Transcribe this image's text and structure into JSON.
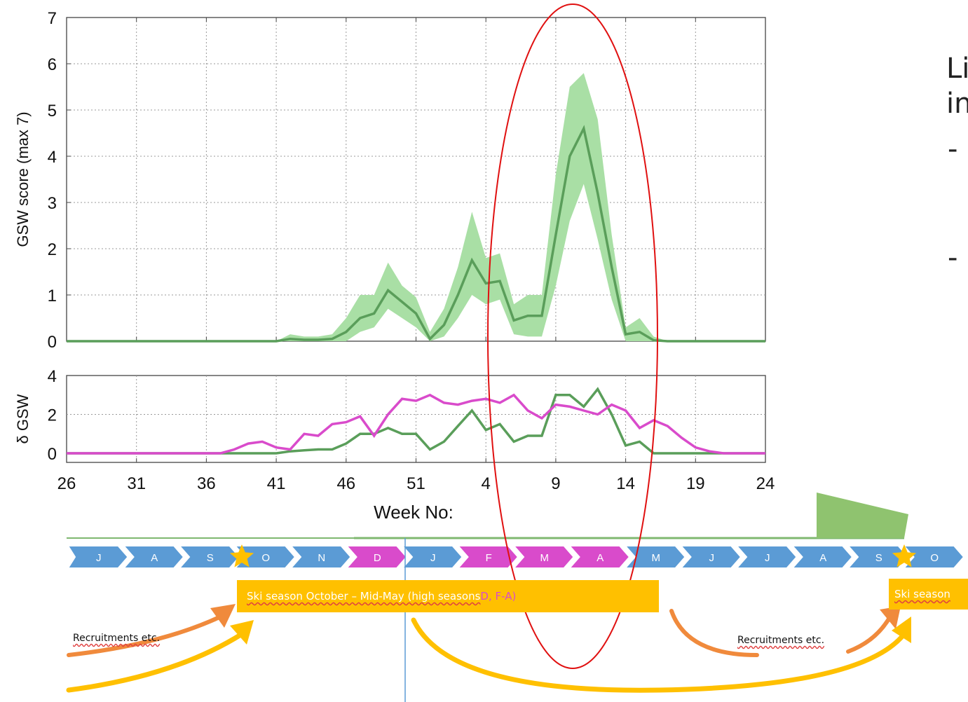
{
  "side_text": {
    "line1": "Li",
    "line2": "in",
    "dash1": "-",
    "dash2": "-"
  },
  "timeline": {
    "months": [
      {
        "label": "J",
        "color": "#5b9bd5"
      },
      {
        "label": "A",
        "color": "#5b9bd5"
      },
      {
        "label": "S",
        "color": "#5b9bd5"
      },
      {
        "label": "O",
        "color": "#5b9bd5"
      },
      {
        "label": "N",
        "color": "#5b9bd5"
      },
      {
        "label": "D",
        "color": "#d94bcb"
      },
      {
        "label": "J",
        "color": "#5b9bd5"
      },
      {
        "label": "F",
        "color": "#d94bcb"
      },
      {
        "label": "M",
        "color": "#d94bcb"
      },
      {
        "label": "A",
        "color": "#d94bcb"
      },
      {
        "label": "M",
        "color": "#5b9bd5"
      },
      {
        "label": "J",
        "color": "#5b9bd5"
      },
      {
        "label": "J",
        "color": "#5b9bd5"
      },
      {
        "label": "A",
        "color": "#5b9bd5"
      },
      {
        "label": "S",
        "color": "#5b9bd5"
      },
      {
        "label": "O",
        "color": "#5b9bd5"
      }
    ],
    "ski_season_main": "Ski season October – Mid-May (high seasons ",
    "ski_season_high": "D, F-A)",
    "ski_season_right": "Ski season",
    "recruit_left": "Recruitments etc.",
    "recruit_right": "Recruitments etc."
  },
  "colors": {
    "green_line": "#5a9e5a",
    "green_band": "#a9dfa5",
    "magenta": "#d94bcb",
    "ellipse": "#e01010"
  },
  "chart_data": [
    {
      "type": "line",
      "panel": "top",
      "ylabel": "GSW score (max 7)",
      "ylim": [
        0,
        7
      ],
      "xlim": [
        26,
        24
      ],
      "x_ticks": [
        26,
        31,
        36,
        41,
        46,
        51,
        4,
        9,
        14,
        19,
        24
      ],
      "y_ticks": [
        0,
        1,
        2,
        3,
        4,
        5,
        6,
        7
      ],
      "grid": true,
      "x": [
        26,
        27,
        28,
        29,
        30,
        31,
        32,
        33,
        34,
        35,
        36,
        37,
        38,
        39,
        40,
        41,
        42,
        43,
        44,
        45,
        46,
        47,
        48,
        49,
        50,
        51,
        52,
        1,
        2,
        3,
        4,
        5,
        6,
        7,
        8,
        9,
        10,
        11,
        12,
        13,
        14,
        15,
        16,
        17,
        18,
        19,
        20,
        21,
        22,
        23,
        24
      ],
      "series": [
        {
          "values": [
            0,
            0,
            0,
            0,
            0,
            0,
            0,
            0,
            0,
            0,
            0,
            0,
            0,
            0,
            0,
            0,
            0.05,
            0.03,
            0.03,
            0.05,
            0.2,
            0.5,
            0.6,
            1.1,
            0.85,
            0.6,
            0.05,
            0.35,
            1.0,
            1.75,
            1.25,
            1.3,
            0.45,
            0.55,
            0.55,
            2.3,
            4.0,
            4.6,
            3.2,
            1.6,
            0.15,
            0.2,
            0.02,
            0,
            0,
            0,
            0,
            0,
            0,
            0,
            0
          ],
          "lower": [
            0,
            0,
            0,
            0,
            0,
            0,
            0,
            0,
            0,
            0,
            0,
            0,
            0,
            0,
            0,
            0,
            0,
            0,
            0,
            0,
            0,
            0.2,
            0.3,
            0.7,
            0.5,
            0.3,
            0,
            0.1,
            0.5,
            1.0,
            0.8,
            0.9,
            0.15,
            0.1,
            0.1,
            1.2,
            2.6,
            3.4,
            2.2,
            0.9,
            0,
            0,
            0,
            0,
            0,
            0,
            0,
            0,
            0,
            0,
            0
          ],
          "upper": [
            0,
            0,
            0,
            0,
            0,
            0,
            0,
            0,
            0,
            0,
            0,
            0,
            0,
            0,
            0,
            0,
            0.15,
            0.1,
            0.1,
            0.15,
            0.5,
            1.0,
            1.0,
            1.7,
            1.2,
            0.95,
            0.2,
            0.7,
            1.6,
            2.8,
            1.8,
            1.9,
            0.8,
            1.0,
            1.0,
            3.6,
            5.5,
            5.8,
            4.8,
            2.3,
            0.3,
            0.5,
            0.1,
            0,
            0,
            0,
            0,
            0,
            0,
            0,
            0
          ]
        }
      ]
    },
    {
      "type": "line",
      "panel": "bottom",
      "ylabel": "δ GSW",
      "xlabel": "Week No:",
      "ylim": [
        0,
        4
      ],
      "y_ticks": [
        0,
        2,
        4
      ],
      "grid": true,
      "x": [
        26,
        27,
        28,
        29,
        30,
        31,
        32,
        33,
        34,
        35,
        36,
        37,
        38,
        39,
        40,
        41,
        42,
        43,
        44,
        45,
        46,
        47,
        48,
        49,
        50,
        51,
        52,
        1,
        2,
        3,
        4,
        5,
        6,
        7,
        8,
        9,
        10,
        11,
        12,
        13,
        14,
        15,
        16,
        17,
        18,
        19,
        20,
        21,
        22,
        23,
        24
      ],
      "series": [
        {
          "color": "green",
          "values": [
            0,
            0,
            0,
            0,
            0,
            0,
            0,
            0,
            0,
            0,
            0,
            0,
            0,
            0,
            0,
            0,
            0.1,
            0.15,
            0.2,
            0.2,
            0.5,
            1.0,
            1.0,
            1.3,
            1.0,
            1.0,
            0.2,
            0.6,
            1.4,
            2.2,
            1.2,
            1.5,
            0.6,
            0.9,
            0.9,
            3.0,
            3.0,
            2.4,
            3.3,
            2.0,
            0.4,
            0.6,
            0,
            0,
            0,
            0,
            0,
            0,
            0,
            0,
            0
          ]
        },
        {
          "color": "magenta",
          "values": [
            0,
            0,
            0,
            0,
            0,
            0,
            0,
            0,
            0,
            0,
            0,
            0,
            0.2,
            0.5,
            0.6,
            0.3,
            0.2,
            1.0,
            0.9,
            1.5,
            1.6,
            1.9,
            0.9,
            2.0,
            2.8,
            2.7,
            3.0,
            2.6,
            2.5,
            2.7,
            2.8,
            2.6,
            3.0,
            2.2,
            1.8,
            2.5,
            2.4,
            2.2,
            2.0,
            2.5,
            2.2,
            1.3,
            1.7,
            1.4,
            0.8,
            0.3,
            0.1,
            0,
            0,
            0,
            0
          ]
        }
      ]
    }
  ]
}
